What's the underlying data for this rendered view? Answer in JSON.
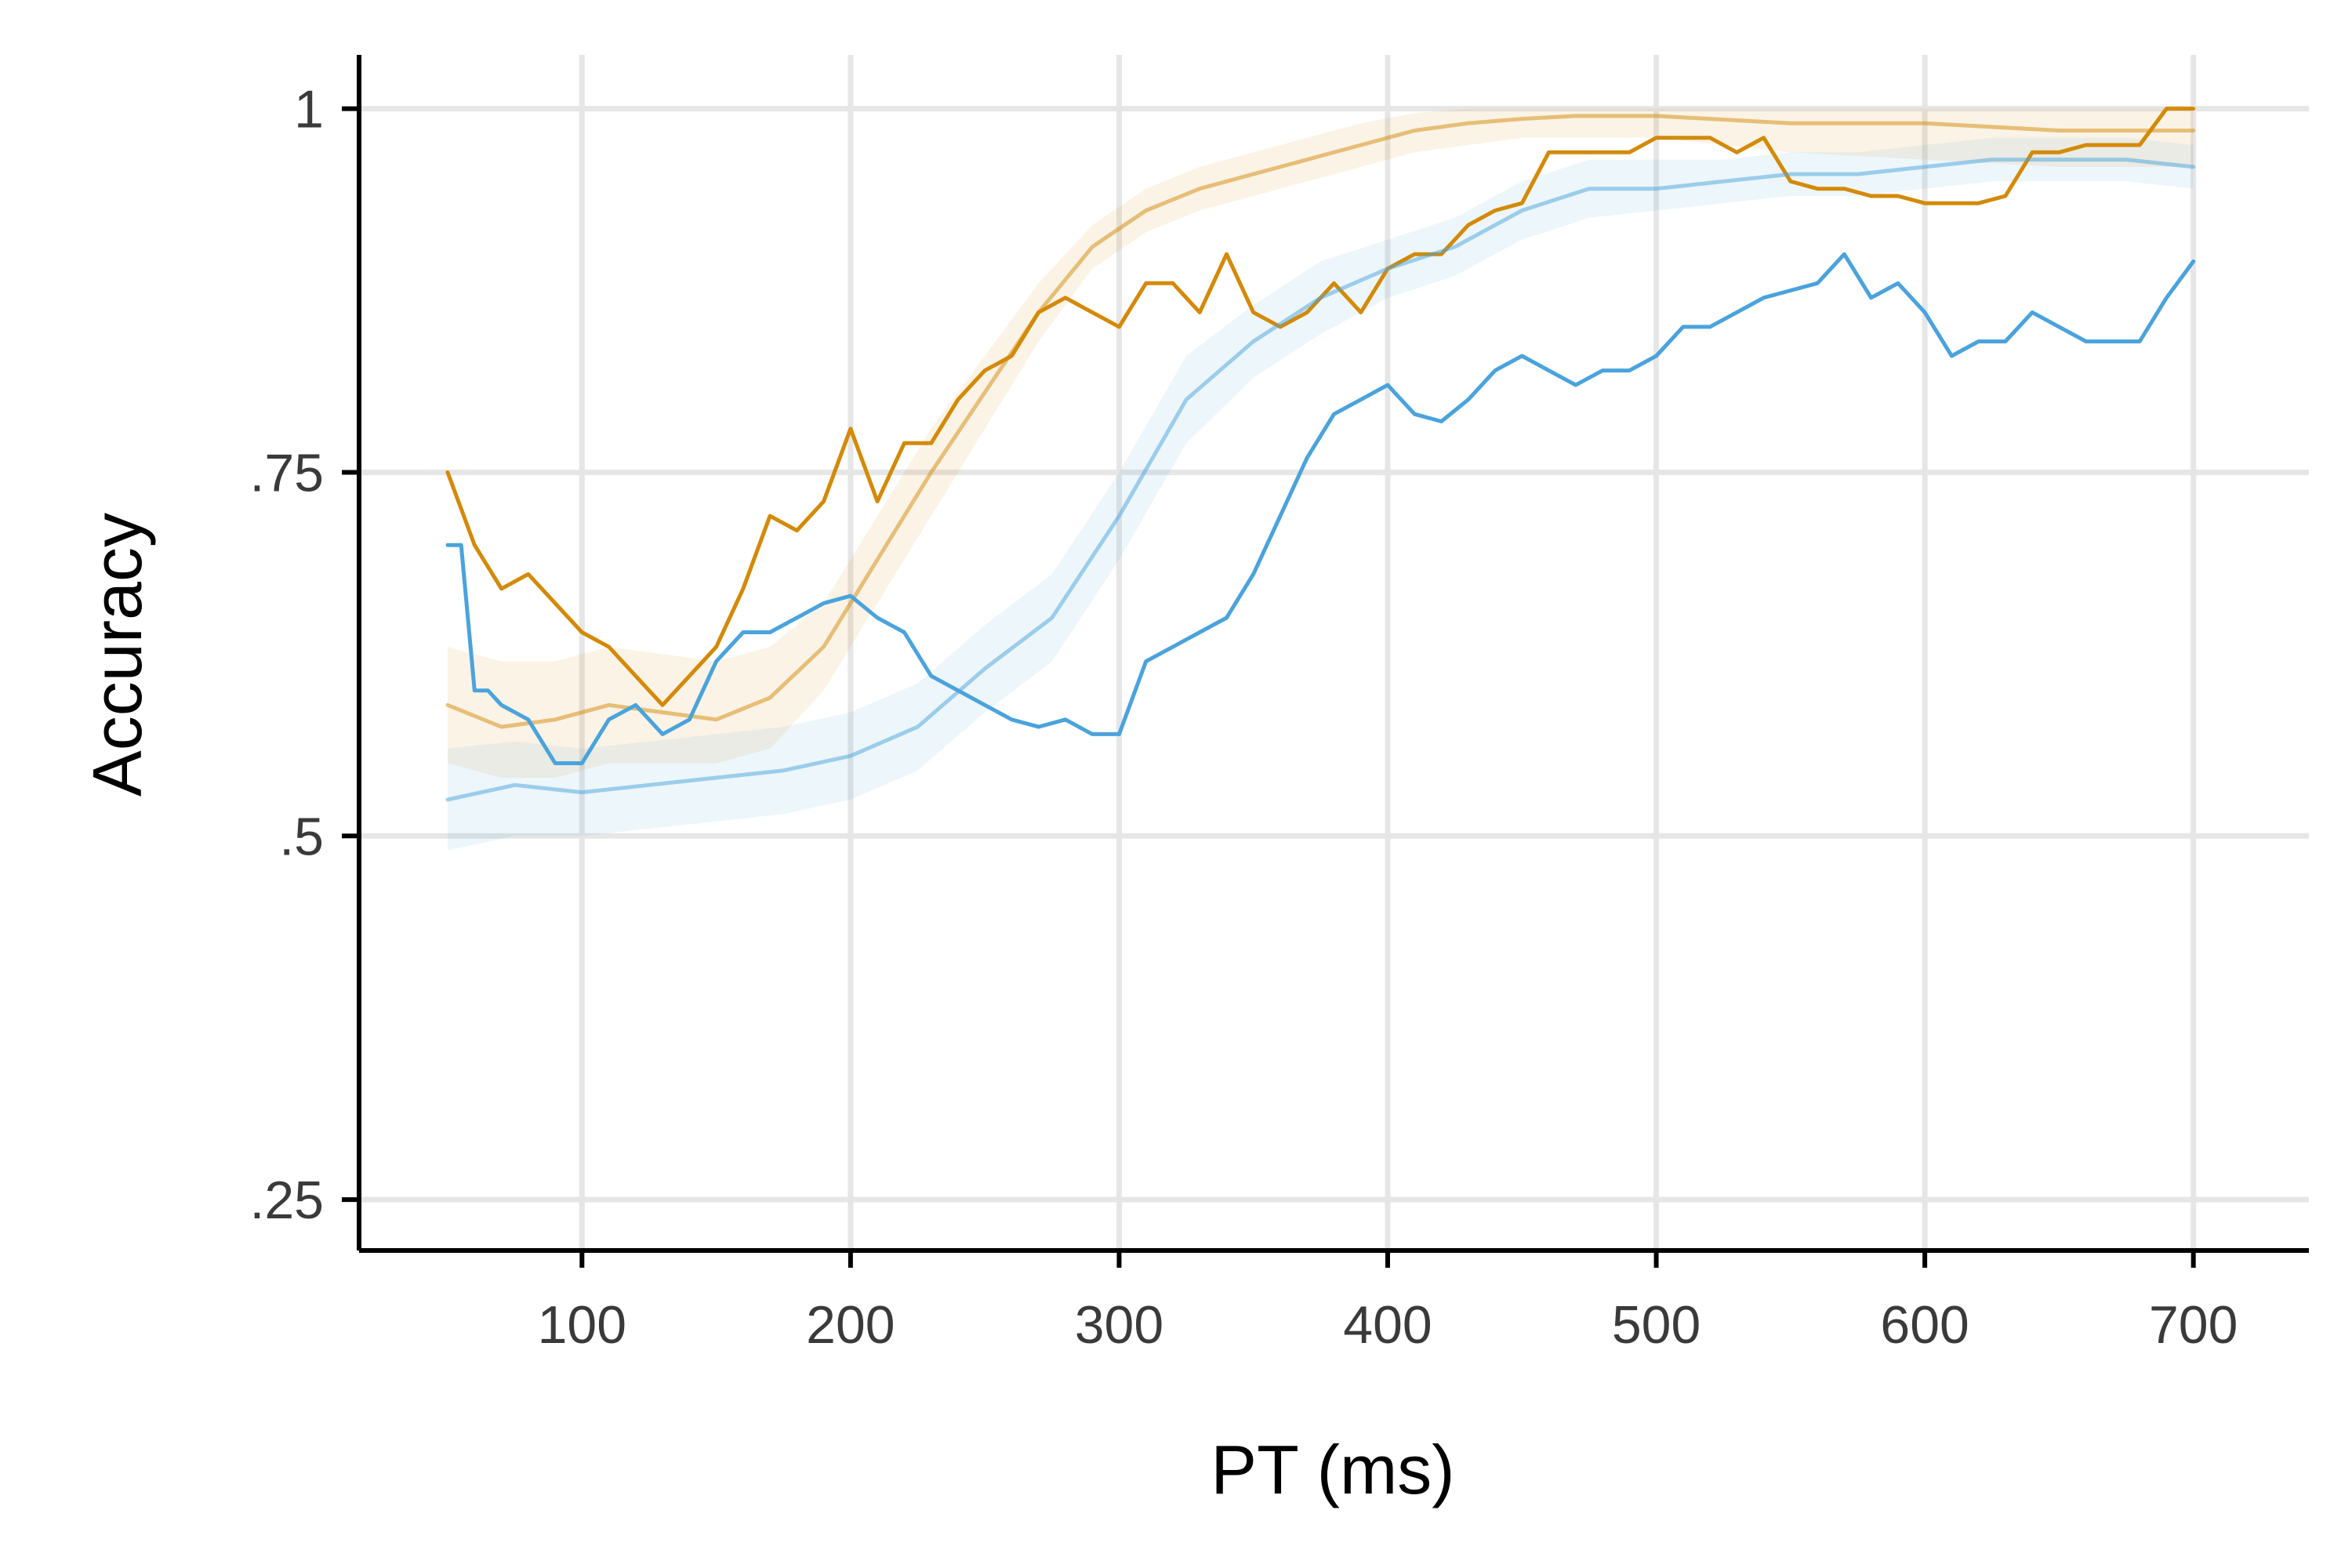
{
  "chart_data": {
    "type": "line",
    "title": "",
    "xlabel": "PT (ms)",
    "ylabel": "Accuracy",
    "xlim": [
      17,
      743
    ],
    "ylim": [
      0.215,
      1.037
    ],
    "xticks": [
      100,
      200,
      300,
      400,
      500,
      600,
      700
    ],
    "xtick_labels": [
      "100",
      "200",
      "300",
      "400",
      "500",
      "600",
      "700"
    ],
    "yticks": [
      0.25,
      0.5,
      0.75,
      1
    ],
    "ytick_labels": [
      ".25",
      ".5",
      ".75",
      "1"
    ],
    "grid": true,
    "legend": "none",
    "series": [
      {
        "color": "#d48a08",
        "opacity": 0.5,
        "x": [
          50,
          70,
          90,
          110,
          130,
          150,
          170,
          190,
          210,
          230,
          250,
          270,
          290,
          310,
          330,
          350,
          370,
          390,
          410,
          430,
          450,
          470,
          500,
          550,
          600,
          650,
          700
        ],
        "y": [
          0.59,
          0.575,
          0.58,
          0.59,
          0.585,
          0.58,
          0.595,
          0.63,
          0.69,
          0.75,
          0.805,
          0.86,
          0.905,
          0.93,
          0.945,
          0.955,
          0.965,
          0.975,
          0.985,
          0.99,
          0.993,
          0.995,
          0.995,
          0.99,
          0.99,
          0.985,
          0.985
        ],
        "band_lower": [
          0.55,
          0.54,
          0.54,
          0.55,
          0.55,
          0.55,
          0.56,
          0.6,
          0.66,
          0.72,
          0.78,
          0.84,
          0.89,
          0.915,
          0.93,
          0.94,
          0.95,
          0.96,
          0.97,
          0.975,
          0.98,
          0.98,
          0.98,
          0.97,
          0.965,
          0.96,
          0.96
        ],
        "band_upper": [
          0.63,
          0.62,
          0.62,
          0.63,
          0.625,
          0.62,
          0.63,
          0.66,
          0.72,
          0.78,
          0.83,
          0.88,
          0.92,
          0.945,
          0.96,
          0.97,
          0.98,
          0.99,
          0.997,
          1.0,
          1.0,
          1.0,
          1.0,
          1.0,
          1.0,
          1.0,
          1.0
        ]
      },
      {
        "color": "#d48a08",
        "opacity": 1,
        "x": [
          50,
          60,
          70,
          80,
          90,
          100,
          110,
          120,
          130,
          140,
          150,
          160,
          170,
          180,
          190,
          200,
          210,
          220,
          230,
          240,
          250,
          260,
          270,
          280,
          290,
          300,
          310,
          320,
          330,
          340,
          350,
          360,
          370,
          380,
          390,
          400,
          410,
          420,
          430,
          440,
          450,
          460,
          470,
          480,
          490,
          500,
          510,
          520,
          530,
          540,
          550,
          560,
          570,
          580,
          590,
          600,
          610,
          620,
          630,
          640,
          650,
          660,
          670,
          680,
          690,
          700
        ],
        "y": [
          0.75,
          0.7,
          0.67,
          0.68,
          0.66,
          0.64,
          0.63,
          0.61,
          0.59,
          0.61,
          0.63,
          0.67,
          0.72,
          0.71,
          0.73,
          0.78,
          0.73,
          0.77,
          0.77,
          0.8,
          0.82,
          0.83,
          0.86,
          0.87,
          0.86,
          0.85,
          0.88,
          0.88,
          0.86,
          0.9,
          0.86,
          0.85,
          0.86,
          0.88,
          0.86,
          0.89,
          0.9,
          0.9,
          0.92,
          0.93,
          0.935,
          0.97,
          0.97,
          0.97,
          0.97,
          0.98,
          0.98,
          0.98,
          0.97,
          0.98,
          0.95,
          0.945,
          0.945,
          0.94,
          0.94,
          0.935,
          0.935,
          0.935,
          0.94,
          0.97,
          0.97,
          0.975,
          0.975,
          0.975,
          1.0,
          1.0
        ]
      },
      {
        "color": "#4aa3dc",
        "opacity": 0.5,
        "x": [
          50,
          75,
          100,
          125,
          150,
          175,
          200,
          225,
          250,
          275,
          300,
          325,
          350,
          375,
          400,
          425,
          450,
          475,
          500,
          525,
          550,
          575,
          600,
          625,
          650,
          675,
          700
        ],
        "y": [
          0.525,
          0.535,
          0.53,
          0.535,
          0.54,
          0.545,
          0.555,
          0.575,
          0.615,
          0.65,
          0.72,
          0.8,
          0.84,
          0.87,
          0.89,
          0.905,
          0.93,
          0.945,
          0.945,
          0.95,
          0.955,
          0.955,
          0.96,
          0.965,
          0.965,
          0.965,
          0.96
        ],
        "band_lower": [
          0.49,
          0.5,
          0.5,
          0.505,
          0.51,
          0.515,
          0.525,
          0.545,
          0.585,
          0.62,
          0.69,
          0.77,
          0.815,
          0.845,
          0.87,
          0.885,
          0.91,
          0.925,
          0.93,
          0.935,
          0.94,
          0.94,
          0.945,
          0.95,
          0.95,
          0.95,
          0.945
        ],
        "band_upper": [
          0.56,
          0.565,
          0.56,
          0.565,
          0.57,
          0.575,
          0.585,
          0.605,
          0.645,
          0.68,
          0.75,
          0.83,
          0.865,
          0.895,
          0.91,
          0.925,
          0.95,
          0.965,
          0.965,
          0.965,
          0.97,
          0.97,
          0.975,
          0.98,
          0.98,
          0.98,
          0.975
        ]
      },
      {
        "color": "#4aa3dc",
        "opacity": 1,
        "x": [
          50,
          55,
          60,
          65,
          70,
          80,
          90,
          100,
          110,
          120,
          130,
          140,
          150,
          160,
          170,
          180,
          190,
          200,
          210,
          220,
          230,
          240,
          250,
          260,
          270,
          280,
          290,
          300,
          310,
          320,
          330,
          340,
          350,
          360,
          370,
          380,
          390,
          400,
          410,
          420,
          430,
          440,
          450,
          460,
          470,
          480,
          490,
          500,
          510,
          520,
          530,
          540,
          550,
          560,
          570,
          580,
          590,
          600,
          610,
          620,
          630,
          640,
          650,
          660,
          670,
          680,
          690,
          700
        ],
        "y": [
          0.7,
          0.7,
          0.6,
          0.6,
          0.59,
          0.58,
          0.55,
          0.55,
          0.58,
          0.59,
          0.57,
          0.58,
          0.62,
          0.64,
          0.64,
          0.65,
          0.66,
          0.665,
          0.65,
          0.64,
          0.61,
          0.6,
          0.59,
          0.58,
          0.575,
          0.58,
          0.57,
          0.57,
          0.62,
          0.63,
          0.64,
          0.65,
          0.68,
          0.72,
          0.76,
          0.79,
          0.8,
          0.81,
          0.79,
          0.785,
          0.8,
          0.82,
          0.83,
          0.82,
          0.81,
          0.82,
          0.82,
          0.83,
          0.85,
          0.85,
          0.86,
          0.87,
          0.875,
          0.88,
          0.9,
          0.87,
          0.88,
          0.86,
          0.83,
          0.84,
          0.84,
          0.86,
          0.85,
          0.84,
          0.84,
          0.84,
          0.87,
          0.895
        ]
      }
    ]
  }
}
